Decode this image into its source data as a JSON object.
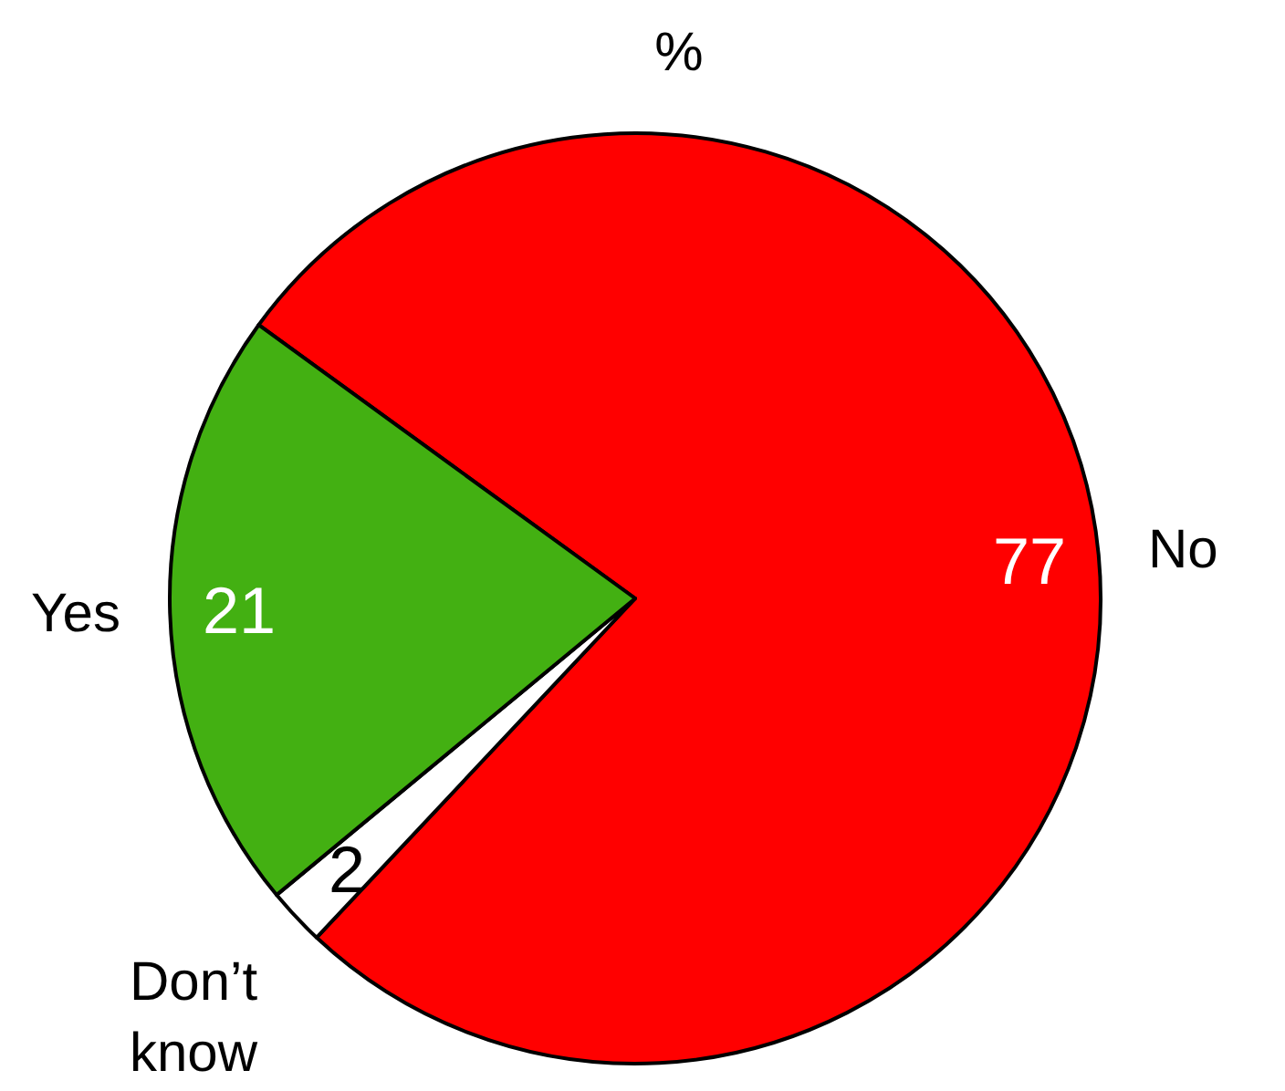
{
  "chart_data": {
    "type": "pie",
    "title": "%",
    "categories": [
      "No",
      "Don’t\nknow",
      "Yes"
    ],
    "values": [
      77,
      2,
      21
    ],
    "colors": [
      "#ff0000",
      "#ffffff",
      "#43b012"
    ],
    "data_labels": true
  }
}
